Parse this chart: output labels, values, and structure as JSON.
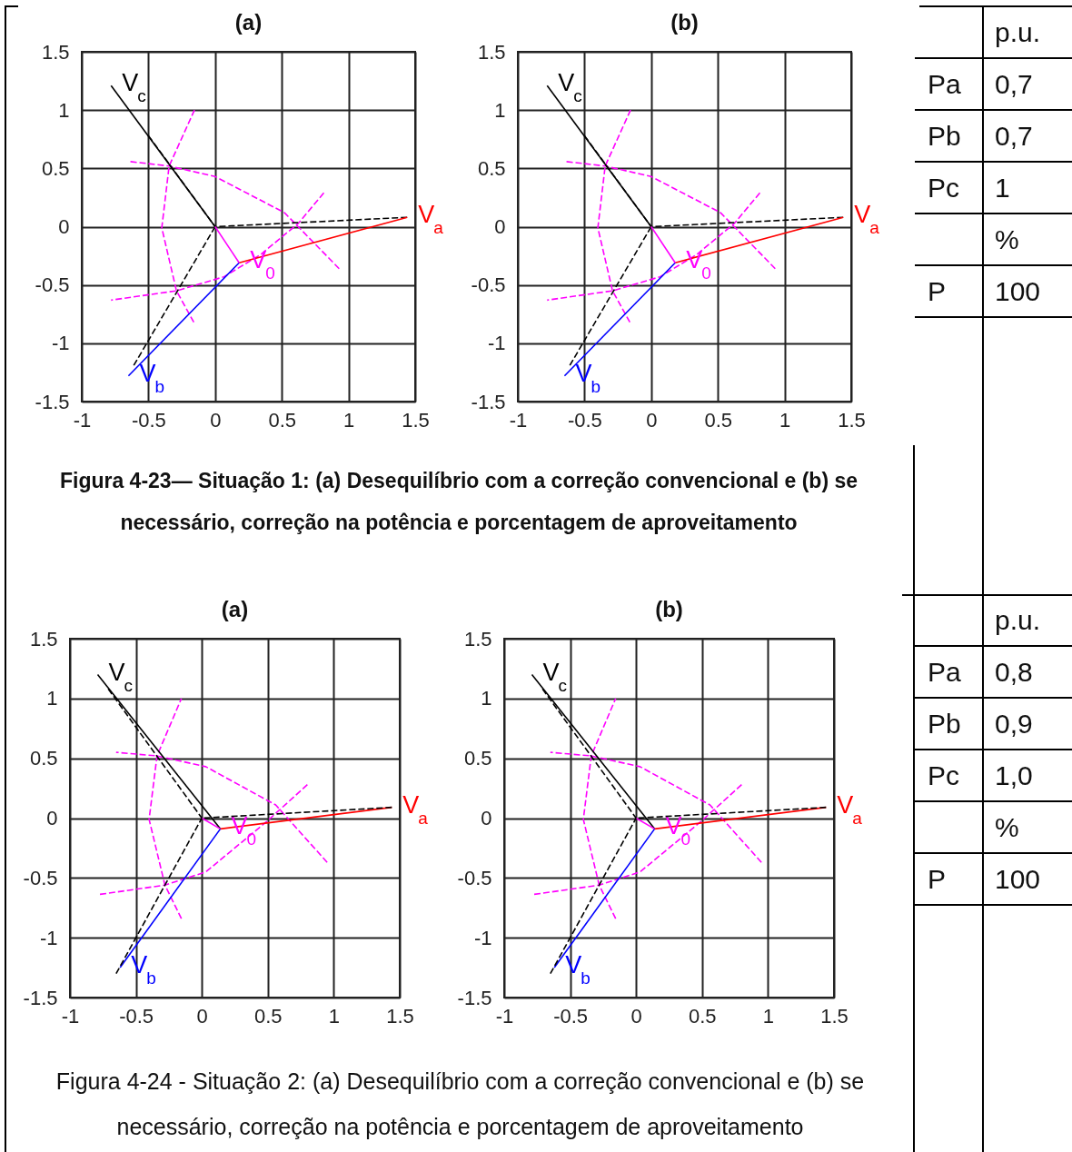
{
  "chart_data": [
    {
      "type": "line",
      "title": "(a)",
      "xlim": [
        -1,
        1.5
      ],
      "ylim": [
        -1.5,
        1.5
      ],
      "xticks": [
        -1,
        -0.5,
        0,
        0.5,
        1,
        1.5
      ],
      "yticks": [
        -1.5,
        -1,
        -0.5,
        0,
        0.5,
        1,
        1.5
      ],
      "grid": true,
      "marker": "none",
      "annotations": [
        "Figura 4-23— Situação 1: (a) Desequilíbrio com a correção convencional e (b) se necessário, correção na potência e porcentagem de aproveitamento"
      ],
      "series": [
        {
          "type": "line",
          "color": "#ff00ff",
          "line_style": "dashed",
          "x": [
            -0.65,
            -0.345,
            0,
            0.52,
            0.93
          ],
          "values": [
            0.56,
            0.52,
            0.43,
            0.12,
            -0.36
          ]
        },
        {
          "type": "line",
          "color": "#ff00ff",
          "line_style": "dashed",
          "x": [
            -0.155,
            -0.345,
            -0.4,
            -0.29,
            -0.16
          ],
          "values": [
            1.0,
            0.52,
            -0.01,
            -0.55,
            -0.82
          ]
        },
        {
          "type": "line",
          "color": "#ff00ff",
          "line_style": "dashed",
          "x": [
            -0.78,
            -0.29,
            0.066,
            0.34,
            0.625,
            0.815
          ],
          "values": [
            -0.63,
            -0.55,
            -0.43,
            -0.24,
            0.03,
            0.29
          ]
        },
        {
          "type": "line",
          "color": "#000000",
          "line_style": "dashed",
          "x": [
            0,
            1.44
          ],
          "values": [
            0,
            0.08
          ]
        },
        {
          "type": "line",
          "color": "#000000",
          "line_style": "dashed",
          "x": [
            0,
            -0.61
          ],
          "values": [
            0,
            -1.19
          ]
        },
        {
          "type": "line",
          "color": "#000000",
          "line_style": "dashed",
          "x": [
            0,
            -0.5
          ],
          "values": [
            0,
            0.78
          ]
        },
        {
          "type": "line",
          "name": "V$_{a}$",
          "color": "#ff0000",
          "line_style": "solid",
          "x": [
            0.18,
            1.44
          ],
          "values": [
            -0.31,
            0.08
          ]
        },
        {
          "type": "line",
          "name": "V$_{b}$",
          "color": "#0000ff",
          "line_style": "solid",
          "x": [
            0.18,
            -0.65
          ],
          "values": [
            -0.31,
            -1.28
          ]
        },
        {
          "type": "line",
          "name": "V$_{c}$",
          "color": "#000000",
          "line_style": "solid",
          "x": [
            0,
            -0.78
          ],
          "values": [
            0,
            1.21
          ]
        },
        {
          "type": "line",
          "name": "V$_{0}$",
          "color": "#ff00ff",
          "line_style": "solid",
          "x": [
            0,
            0.18
          ],
          "values": [
            0,
            -0.31
          ]
        }
      ]
    },
    {
      "type": "line",
      "title": "(b)",
      "xlim": [
        -1,
        1.5
      ],
      "ylim": [
        -1.5,
        1.5
      ],
      "xticks": [
        -1,
        -0.5,
        0,
        0.5,
        1,
        1.5
      ],
      "yticks": [
        -1.5,
        -1,
        -0.5,
        0,
        0.5,
        1,
        1.5
      ],
      "grid": true,
      "marker": "none",
      "series": [
        {
          "type": "line",
          "color": "#ff00ff",
          "line_style": "dashed",
          "x": [
            -0.65,
            -0.345,
            0,
            0.52,
            0.93
          ],
          "values": [
            0.56,
            0.52,
            0.43,
            0.12,
            -0.36
          ]
        },
        {
          "type": "line",
          "color": "#ff00ff",
          "line_style": "dashed",
          "x": [
            -0.155,
            -0.345,
            -0.4,
            -0.29,
            -0.16
          ],
          "values": [
            1.0,
            0.52,
            -0.01,
            -0.55,
            -0.82
          ]
        },
        {
          "type": "line",
          "color": "#ff00ff",
          "line_style": "dashed",
          "x": [
            -0.78,
            -0.29,
            0.066,
            0.34,
            0.625,
            0.815
          ],
          "values": [
            -0.63,
            -0.55,
            -0.43,
            -0.24,
            0.03,
            0.29
          ]
        },
        {
          "type": "line",
          "color": "#000000",
          "line_style": "dashed",
          "x": [
            0,
            1.44
          ],
          "values": [
            0,
            0.08
          ]
        },
        {
          "type": "line",
          "color": "#000000",
          "line_style": "dashed",
          "x": [
            0,
            -0.61
          ],
          "values": [
            0,
            -1.19
          ]
        },
        {
          "type": "line",
          "color": "#000000",
          "line_style": "dashed",
          "x": [
            0,
            -0.5
          ],
          "values": [
            0,
            0.78
          ]
        },
        {
          "type": "line",
          "name": "V$_{a}$",
          "color": "#ff0000",
          "line_style": "solid",
          "x": [
            0.18,
            1.44
          ],
          "values": [
            -0.31,
            0.08
          ]
        },
        {
          "type": "line",
          "name": "V$_{b}$",
          "color": "#0000ff",
          "line_style": "solid",
          "x": [
            0.18,
            -0.65
          ],
          "values": [
            -0.31,
            -1.28
          ]
        },
        {
          "type": "line",
          "name": "V$_{c}$",
          "color": "#000000",
          "line_style": "solid",
          "x": [
            0,
            -0.78
          ],
          "values": [
            0,
            1.21
          ]
        },
        {
          "type": "line",
          "name": "V$_{0}$",
          "color": "#ff00ff",
          "line_style": "solid",
          "x": [
            0,
            0.18
          ],
          "values": [
            0,
            -0.31
          ]
        }
      ]
    },
    {
      "type": "other",
      "categories": [
        null,
        "Pa",
        "Pb",
        "Pc",
        null,
        "P"
      ],
      "value_labels": [
        "p.u.",
        "0,7",
        "0,7",
        "1",
        "%",
        "100"
      ]
    },
    {
      "type": "line",
      "title": "(a)",
      "xlim": [
        -1,
        1.5
      ],
      "ylim": [
        -1.5,
        1.5
      ],
      "xticks": [
        -1,
        -0.5,
        0,
        0.5,
        1,
        1.5
      ],
      "yticks": [
        -1.5,
        -1,
        -0.5,
        0,
        0.5,
        1,
        1.5
      ],
      "grid": true,
      "marker": "none",
      "annotations": [
        "Figura 4-24 - Situação 2: (a) Desequilíbrio com a correção convencional e (b) se necessário, correção na potência e porcentagem de aproveitamento"
      ],
      "series": [
        {
          "type": "line",
          "color": "#ff00ff",
          "line_style": "dashed",
          "x": [
            -0.65,
            -0.34,
            0.03,
            0.56,
            0.95
          ],
          "values": [
            0.55,
            0.52,
            0.43,
            0.11,
            -0.37
          ]
        },
        {
          "type": "line",
          "color": "#ff00ff",
          "line_style": "dashed",
          "x": [
            -0.155,
            -0.34,
            -0.4,
            -0.28,
            -0.155
          ],
          "values": [
            1.0,
            0.52,
            -0.01,
            -0.56,
            -0.84
          ]
        },
        {
          "type": "line",
          "color": "#ff00ff",
          "line_style": "dashed",
          "x": [
            -0.79,
            -0.28,
            0.03,
            0.49,
            0.8
          ],
          "values": [
            -0.64,
            -0.56,
            -0.45,
            -0.03,
            0.28
          ]
        },
        {
          "type": "line",
          "name": "V$_{a}$",
          "color": "#ff0000",
          "line_style": "solid",
          "x": [
            0.14,
            1.44
          ],
          "values": [
            -0.09,
            0.09
          ]
        },
        {
          "type": "line",
          "name": "V$_{b}$",
          "color": "#0000ff",
          "line_style": "solid",
          "x": [
            0.14,
            -0.62
          ],
          "values": [
            -0.09,
            -1.25
          ]
        },
        {
          "type": "line",
          "name": "V$_{c}$",
          "color": "#000000",
          "line_style": "solid",
          "x": [
            0.14,
            -0.79
          ],
          "values": [
            -0.09,
            1.2
          ]
        },
        {
          "type": "line",
          "name": "V$_{0}$",
          "color": "#ff00ff",
          "line_style": "solid",
          "x": [
            0,
            0.14
          ],
          "values": [
            0,
            -0.09
          ]
        },
        {
          "type": "line",
          "color": "#000000",
          "line_style": "dashed",
          "x": [
            0,
            1.44
          ],
          "values": [
            0,
            0.09
          ]
        },
        {
          "type": "line",
          "color": "#000000",
          "line_style": "dashed",
          "x": [
            0,
            -0.65
          ],
          "values": [
            0,
            -1.3
          ]
        },
        {
          "type": "line",
          "color": "#000000",
          "line_style": "dashed",
          "x": [
            0,
            -0.71
          ],
          "values": [
            0,
            1.08
          ]
        }
      ]
    },
    {
      "type": "line",
      "title": "(b)",
      "xlim": [
        -1,
        1.5
      ],
      "ylim": [
        -1.5,
        1.5
      ],
      "xticks": [
        -1,
        -0.5,
        0,
        0.5,
        1,
        1.5
      ],
      "yticks": [
        -1.5,
        -1,
        -0.5,
        0,
        0.5,
        1,
        1.5
      ],
      "grid": true,
      "marker": "none",
      "series": [
        {
          "type": "line",
          "color": "#ff00ff",
          "line_style": "dashed",
          "x": [
            -0.65,
            -0.34,
            0.03,
            0.56,
            0.95
          ],
          "values": [
            0.55,
            0.52,
            0.43,
            0.11,
            -0.37
          ]
        },
        {
          "type": "line",
          "color": "#ff00ff",
          "line_style": "dashed",
          "x": [
            -0.155,
            -0.34,
            -0.4,
            -0.28,
            -0.155
          ],
          "values": [
            1.0,
            0.52,
            -0.01,
            -0.56,
            -0.84
          ]
        },
        {
          "type": "line",
          "color": "#ff00ff",
          "line_style": "dashed",
          "x": [
            -0.79,
            -0.28,
            0.03,
            0.49,
            0.8
          ],
          "values": [
            -0.64,
            -0.56,
            -0.45,
            -0.03,
            0.28
          ]
        },
        {
          "type": "line",
          "name": "V$_{a}$",
          "color": "#ff0000",
          "line_style": "solid",
          "x": [
            0.14,
            1.44
          ],
          "values": [
            -0.09,
            0.09
          ]
        },
        {
          "type": "line",
          "name": "V$_{b}$",
          "color": "#0000ff",
          "line_style": "solid",
          "x": [
            0.14,
            -0.62
          ],
          "values": [
            -0.09,
            -1.25
          ]
        },
        {
          "type": "line",
          "name": "V$_{c}$",
          "color": "#000000",
          "line_style": "solid",
          "x": [
            0.14,
            -0.79
          ],
          "values": [
            -0.09,
            1.2
          ]
        },
        {
          "type": "line",
          "name": "V$_{0}$",
          "color": "#ff00ff",
          "line_style": "solid",
          "x": [
            0,
            0.14
          ],
          "values": [
            0,
            -0.09
          ]
        },
        {
          "type": "line",
          "color": "#000000",
          "line_style": "dashed",
          "x": [
            0,
            1.44
          ],
          "values": [
            0,
            0.09
          ]
        },
        {
          "type": "line",
          "color": "#000000",
          "line_style": "dashed",
          "x": [
            0,
            -0.65
          ],
          "values": [
            0,
            -1.3
          ]
        },
        {
          "type": "line",
          "color": "#000000",
          "line_style": "dashed",
          "x": [
            0,
            -0.71
          ],
          "values": [
            0,
            1.08
          ]
        }
      ]
    },
    {
      "type": "other",
      "categories": [
        null,
        "Pa",
        "Pb",
        "Pc",
        null,
        "P"
      ],
      "value_labels": [
        "p.u.",
        "0,8",
        "0,9",
        "1,0",
        "%",
        "100"
      ]
    }
  ]
}
